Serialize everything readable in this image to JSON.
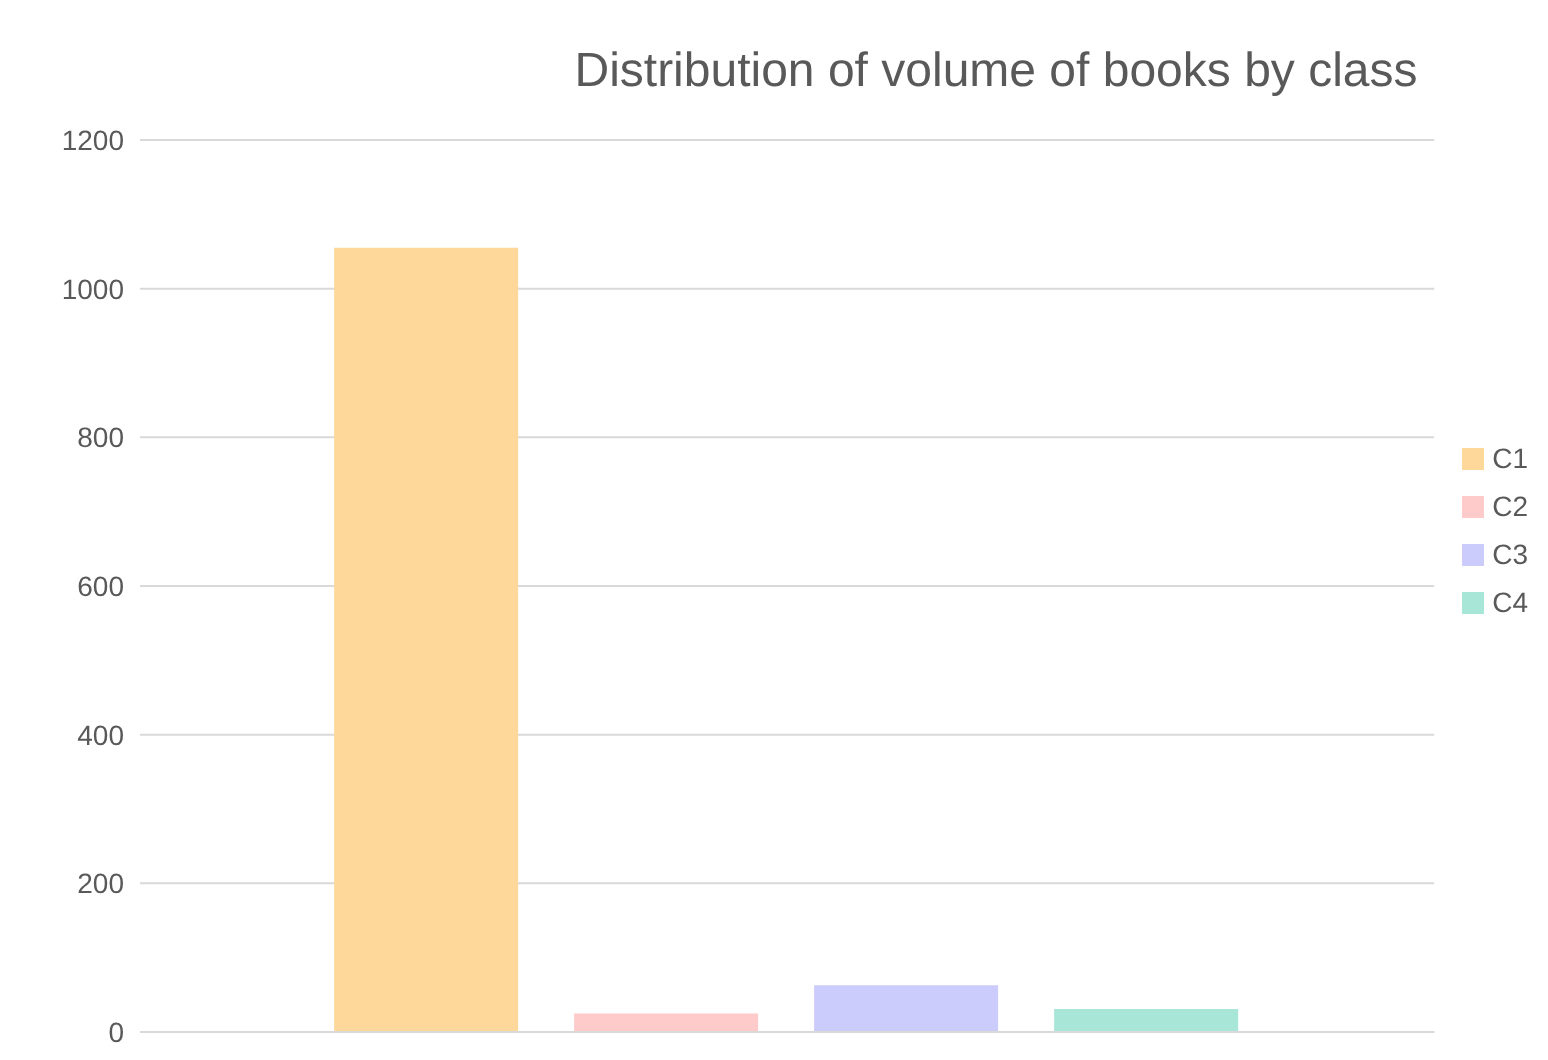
{
  "chart_data": {
    "type": "bar",
    "title": "Distribution of volume of books by class",
    "categories": [
      null
    ],
    "series": [
      {
        "name": "C1",
        "color": "#fed89b",
        "values": [
          1055
        ]
      },
      {
        "name": "C2",
        "color": "#fecaca",
        "values": [
          25
        ]
      },
      {
        "name": "C3",
        "color": "#cbcbfc",
        "values": [
          63
        ]
      },
      {
        "name": "C4",
        "color": "#a8e6d8",
        "values": [
          31
        ]
      }
    ],
    "ylim": [
      0,
      1200
    ],
    "yticks": [
      0,
      200,
      400,
      600,
      800,
      1000,
      1200
    ],
    "grid": "y",
    "legend": "right"
  }
}
